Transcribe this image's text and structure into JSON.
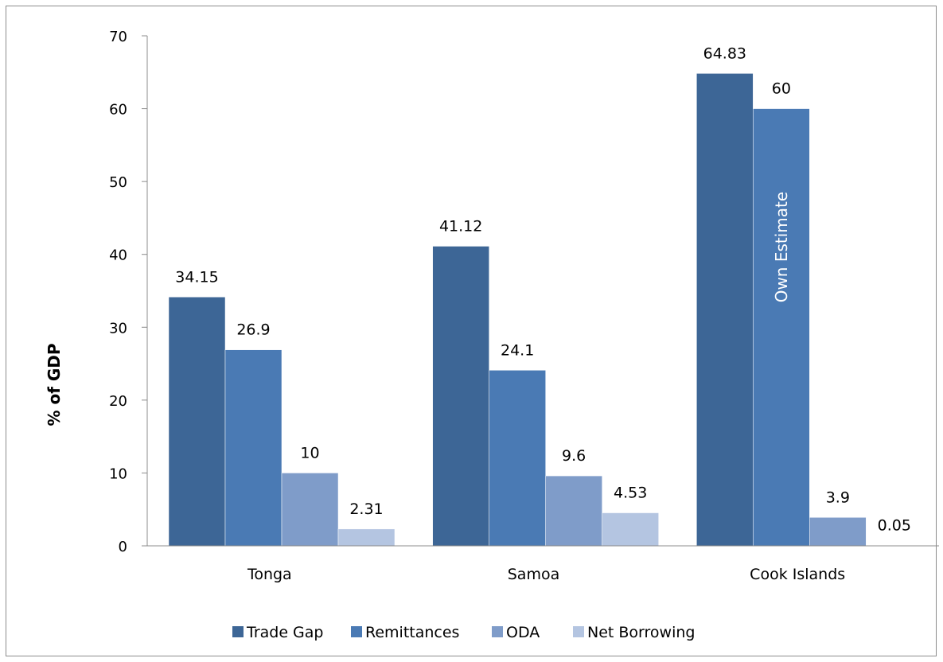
{
  "chart_data": {
    "type": "bar",
    "title": "",
    "xlabel": "",
    "ylabel": "% of GDP",
    "ylim": [
      0,
      70
    ],
    "yticks": [
      0,
      10,
      20,
      30,
      40,
      50,
      60,
      70
    ],
    "grid": false,
    "legend_position": "bottom",
    "categories": [
      "Tonga",
      "Samoa",
      "Cook Islands"
    ],
    "series": [
      {
        "name": "Trade Gap",
        "color": "#3D6696",
        "values": [
          34.15,
          41.12,
          64.83
        ],
        "labels": [
          "34.15",
          "41.12",
          "64.83"
        ]
      },
      {
        "name": "Remittances",
        "color": "#4A7AB4",
        "values": [
          26.9,
          24.1,
          60
        ],
        "labels": [
          "26.9",
          "24.1",
          "60"
        ]
      },
      {
        "name": "ODA",
        "color": "#7F9CC9",
        "values": [
          10,
          9.6,
          3.9
        ],
        "labels": [
          "10",
          "9.6",
          "3.9"
        ]
      },
      {
        "name": "Net Borrowing",
        "color": "#B4C5E1",
        "values": [
          2.31,
          4.53,
          0.05
        ],
        "labels": [
          "2.31",
          "4.53",
          "0.05"
        ]
      }
    ],
    "annotations": [
      {
        "text": "Own Estimate",
        "category": "Cook Islands",
        "series": "Remittances",
        "orientation": "vertical"
      }
    ]
  }
}
